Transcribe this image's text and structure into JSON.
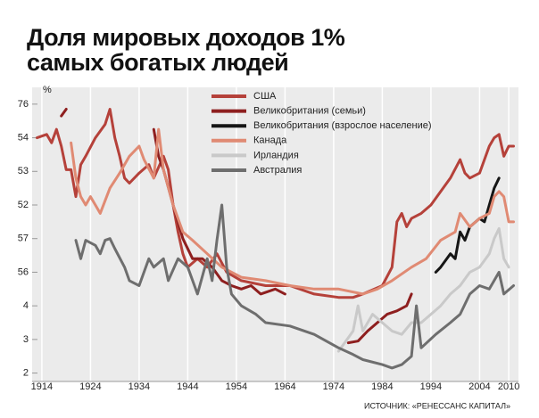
{
  "chart_data": {
    "type": "line",
    "title": [
      "Доля мировых доходов 1%",
      "самых богатых людей"
    ],
    "ylabel": "%",
    "source": "ИСТОЧНИК: «РЕНЕССАНС КАПИТАЛ»",
    "xlim": [
      1912,
      2012
    ],
    "xticks": [
      1914,
      1924,
      1934,
      1944,
      1954,
      1964,
      1974,
      1984,
      1994,
      2004,
      2010
    ],
    "ylim": [
      1.5,
      19
    ],
    "yticks": [
      {
        "value": 18,
        "label": "76"
      },
      {
        "value": 16,
        "label": "54"
      },
      {
        "value": 14,
        "label": "53"
      },
      {
        "value": 12,
        "label": "52"
      },
      {
        "value": 10,
        "label": "57"
      },
      {
        "value": 8,
        "label": "56"
      },
      {
        "value": 6,
        "label": "4"
      },
      {
        "value": 4,
        "label": "3"
      },
      2
    ],
    "series": [
      {
        "name": "США",
        "color": "#b5413a",
        "x": [
          1913,
          1915,
          1916,
          1917,
          1918,
          1919,
          1920,
          1921,
          1922,
          1923,
          1925,
          1927,
          1928,
          1929,
          1930,
          1931,
          1932,
          1934,
          1936,
          1937,
          1939,
          1940,
          1941,
          1942,
          1943,
          1944,
          1946,
          1948,
          1950,
          1952,
          1955,
          1960,
          1965,
          1970,
          1975,
          1978,
          1980,
          1984,
          1986,
          1987,
          1988,
          1989,
          1990,
          1992,
          1994,
          1996,
          1998,
          2000,
          2001,
          2002,
          2004,
          2006,
          2007,
          2008,
          2009,
          2010,
          2011
        ],
        "values": [
          16.0,
          16.2,
          15.7,
          16.5,
          15.5,
          14.1,
          14.1,
          12.5,
          14.4,
          14.9,
          16.0,
          16.8,
          17.7,
          16.0,
          14.9,
          13.6,
          13.3,
          13.9,
          14.4,
          13.6,
          14.9,
          14.1,
          12.0,
          10.4,
          9.1,
          8.3,
          8.8,
          8.3,
          9.1,
          8.0,
          7.5,
          7.2,
          7.2,
          6.7,
          6.5,
          6.5,
          6.7,
          7.2,
          8.3,
          11.0,
          11.5,
          10.7,
          11.2,
          11.5,
          12.0,
          12.8,
          13.6,
          14.7,
          13.9,
          13.6,
          13.9,
          15.5,
          16.0,
          16.2,
          14.9,
          15.5,
          15.5
        ]
      },
      {
        "name": "Великобритания (семьи)",
        "color": "#8e1f1f",
        "x": [
          1918,
          1919,
          1930,
          1937,
          1938,
          1939,
          1941,
          1943,
          1945,
          1947,
          1949,
          1951,
          1953,
          1955,
          1957,
          1959,
          1962,
          1964,
          1970,
          1977,
          1979,
          1981,
          1983,
          1985,
          1987,
          1989,
          1990
        ],
        "values": [
          17.3,
          17.7,
          null,
          16.5,
          14.9,
          14.1,
          12.0,
          10.0,
          8.8,
          8.8,
          8.3,
          7.5,
          7.2,
          7.0,
          7.2,
          6.7,
          7.0,
          6.7,
          null,
          3.8,
          3.9,
          4.5,
          5.0,
          5.5,
          5.7,
          6.0,
          6.7
        ]
      },
      {
        "name": "Великобритания (взрослое население)",
        "color": "#161616",
        "x": [
          1995,
          1996,
          1998,
          1999,
          2000,
          2001,
          2002,
          2004,
          2005,
          2006,
          2007,
          2008
        ],
        "values": [
          8.0,
          8.3,
          9.1,
          8.8,
          10.4,
          9.9,
          10.7,
          11.2,
          11.0,
          12.0,
          13.0,
          13.6
        ]
      },
      {
        "name": "Канада",
        "color": "#e08a73",
        "x": [
          1920,
          1921,
          1922,
          1923,
          1924,
          1926,
          1928,
          1930,
          1932,
          1934,
          1935,
          1937,
          1938,
          1939,
          1941,
          1943,
          1945,
          1948,
          1951,
          1955,
          1960,
          1965,
          1970,
          1975,
          1980,
          1983,
          1986,
          1990,
          1993,
          1996,
          1999,
          2000,
          2002,
          2004,
          2006,
          2007,
          2008,
          2009,
          2010,
          2011
        ],
        "values": [
          15.7,
          13.6,
          12.5,
          12.0,
          12.5,
          11.5,
          13.0,
          13.9,
          14.9,
          15.5,
          14.7,
          13.6,
          16.5,
          14.1,
          12.0,
          10.4,
          9.9,
          9.1,
          8.3,
          7.7,
          7.5,
          7.2,
          7.0,
          7.0,
          6.7,
          7.0,
          7.5,
          8.3,
          8.8,
          9.9,
          10.4,
          11.5,
          10.7,
          11.2,
          11.5,
          12.5,
          12.8,
          12.5,
          11.0,
          11.0
        ]
      },
      {
        "name": "Ирландия",
        "color": "#c9c9c9",
        "x": [
          1975,
          1978,
          1979,
          1980,
          1982,
          1984,
          1986,
          1988,
          1990,
          1992,
          1994,
          1996,
          1998,
          2000,
          2002,
          2004,
          2006,
          2007,
          2008,
          2009,
          2010
        ],
        "values": [
          3.3,
          4.5,
          6.0,
          4.5,
          5.5,
          5.0,
          4.5,
          4.3,
          5.0,
          5.0,
          5.5,
          6.0,
          6.7,
          7.2,
          8.0,
          8.3,
          9.1,
          10.0,
          10.6,
          8.8,
          8.3
        ]
      },
      {
        "name": "Австралия",
        "color": "#6e6e6e",
        "x": [
          1921,
          1922,
          1923,
          1925,
          1926,
          1927,
          1928,
          1929,
          1931,
          1932,
          1934,
          1936,
          1937,
          1939,
          1940,
          1942,
          1944,
          1946,
          1948,
          1949,
          1950,
          1951,
          1952,
          1953,
          1955,
          1958,
          1960,
          1965,
          1970,
          1975,
          1978,
          1980,
          1984,
          1986,
          1988,
          1990,
          1991,
          1992,
          1995,
          1998,
          2000,
          2002,
          2004,
          2006,
          2008,
          2009,
          2011
        ],
        "values": [
          9.9,
          8.8,
          9.9,
          9.6,
          9.1,
          9.9,
          10.0,
          9.4,
          8.3,
          7.5,
          7.2,
          8.8,
          8.3,
          8.8,
          7.5,
          8.8,
          8.3,
          6.7,
          8.8,
          7.5,
          9.9,
          12.0,
          8.3,
          6.7,
          6.0,
          5.5,
          5.0,
          4.8,
          4.3,
          3.5,
          3.1,
          2.8,
          2.5,
          2.3,
          2.5,
          3.0,
          6.0,
          3.5,
          4.3,
          5.0,
          5.5,
          6.7,
          7.2,
          7.0,
          8.0,
          6.7,
          7.2
        ]
      }
    ]
  }
}
